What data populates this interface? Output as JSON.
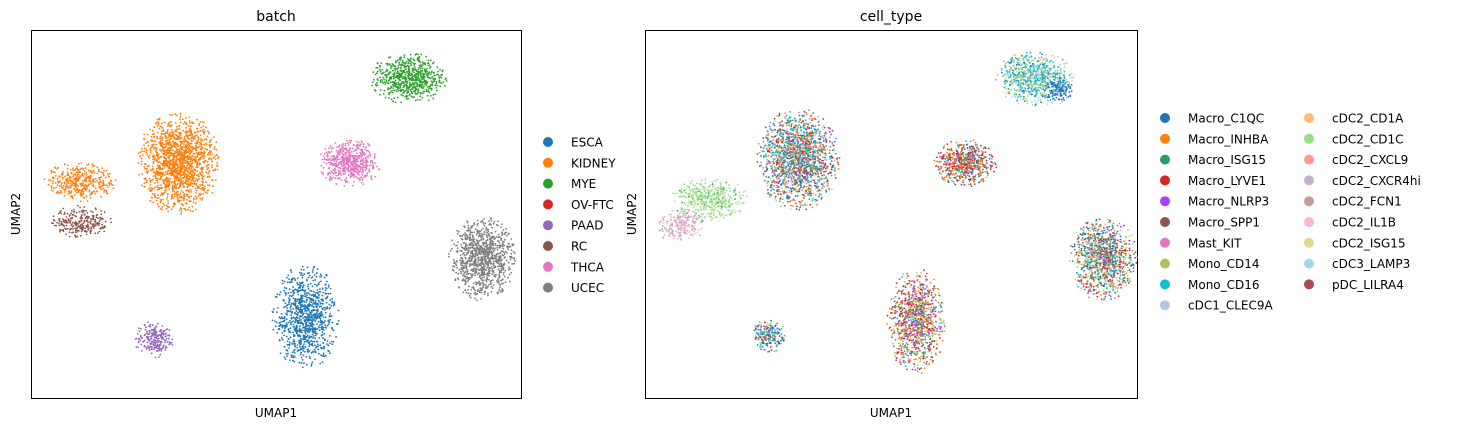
{
  "chart_data": [
    {
      "type": "scatter",
      "title": "batch",
      "xlabel": "UMAP1",
      "ylabel": "UMAP2",
      "xlim": [
        0,
        100
      ],
      "ylim": [
        0,
        100
      ],
      "grid": false,
      "legend_position": "right",
      "series": [
        {
          "name": "ESCA",
          "color": "#1f77b4",
          "clusters": [
            {
              "cx": 56,
              "cy": 22,
              "rx": 7.0,
              "ry": 14.5,
              "n": 950
            }
          ]
        },
        {
          "name": "KIDNEY",
          "color": "#ff7f0e",
          "clusters": [
            {
              "cx": 30,
              "cy": 64,
              "rx": 8.5,
              "ry": 14.0,
              "n": 1500
            },
            {
              "cx": 10,
              "cy": 59,
              "rx": 7.5,
              "ry": 5.5,
              "n": 380
            }
          ]
        },
        {
          "name": "MYE",
          "color": "#2ca02c",
          "clusters": [
            {
              "cx": 77,
              "cy": 87,
              "rx": 8.0,
              "ry": 7.0,
              "n": 650
            }
          ]
        },
        {
          "name": "OV-FTC",
          "color": "#d62728",
          "clusters": []
        },
        {
          "name": "PAAD",
          "color": "#9467bd",
          "clusters": [
            {
              "cx": 25,
              "cy": 16,
              "rx": 4.0,
              "ry": 5.0,
              "n": 220
            }
          ]
        },
        {
          "name": "RC",
          "color": "#8c564b",
          "clusters": [
            {
              "cx": 10,
              "cy": 48,
              "rx": 6.5,
              "ry": 4.5,
              "n": 260
            }
          ]
        },
        {
          "name": "THCA",
          "color": "#e377c2",
          "clusters": [
            {
              "cx": 65,
              "cy": 64,
              "rx": 6.5,
              "ry": 6.5,
              "n": 560
            }
          ]
        },
        {
          "name": "UCEC",
          "color": "#7f7f7f",
          "clusters": [
            {
              "cx": 92,
              "cy": 38,
              "rx": 7.0,
              "ry": 11.5,
              "n": 1000
            }
          ]
        }
      ]
    },
    {
      "type": "scatter",
      "title": "cell_type",
      "xlabel": "UMAP1",
      "ylabel": "UMAP2",
      "xlim": [
        0,
        100
      ],
      "ylim": [
        0,
        100
      ],
      "grid": false,
      "legend_position": "right",
      "legend_columns": 2,
      "series": [
        {
          "name": "Macro_C1QC",
          "color": "#1f77b4"
        },
        {
          "name": "Macro_INHBA",
          "color": "#ff7f0e"
        },
        {
          "name": "Macro_ISG15",
          "color": "#279e68"
        },
        {
          "name": "Macro_LYVE1",
          "color": "#d62728"
        },
        {
          "name": "Macro_NLRP3",
          "color": "#aa40fc"
        },
        {
          "name": "Macro_SPP1",
          "color": "#8c564b"
        },
        {
          "name": "Mast_KIT",
          "color": "#e377c2"
        },
        {
          "name": "Mono_CD14",
          "color": "#b5bd61"
        },
        {
          "name": "Mono_CD16",
          "color": "#17becf"
        },
        {
          "name": "cDC1_CLEC9A",
          "color": "#aec7e8"
        },
        {
          "name": "cDC2_CD1A",
          "color": "#ffbb78"
        },
        {
          "name": "cDC2_CD1C",
          "color": "#98df8a"
        },
        {
          "name": "cDC2_CXCL9",
          "color": "#ff9896"
        },
        {
          "name": "cDC2_CXCR4hi",
          "color": "#c5b0d5"
        },
        {
          "name": "cDC2_FCN1",
          "color": "#c49c94"
        },
        {
          "name": "cDC2_IL1B",
          "color": "#f7b6d2"
        },
        {
          "name": "cDC2_ISG15",
          "color": "#dbdb8d"
        },
        {
          "name": "cDC3_LAMP3",
          "color": "#9edae5"
        },
        {
          "name": "pDC_LILRA4",
          "color": "#ad494a"
        }
      ],
      "clusters": [
        {
          "cx": 79,
          "cy": 87,
          "rx": 8.0,
          "ry": 7.5,
          "n": 800,
          "weights": {
            "Mono_CD16": 5,
            "cDC3_LAMP3": 4,
            "Mono_CD14": 2,
            "cDC2_ISG15": 2,
            "Macro_ISG15": 1,
            "Macro_C1QC": 1
          }
        },
        {
          "cx": 84,
          "cy": 84,
          "rx": 3.0,
          "ry": 3.5,
          "n": 150,
          "weights": {
            "Macro_C1QC": 6,
            "cDC1_CLEC9A": 2
          }
        },
        {
          "cx": 31,
          "cy": 65,
          "rx": 8.5,
          "ry": 14.0,
          "n": 1700,
          "weights": {
            "Mono_CD16": 3,
            "Macro_C1QC": 2,
            "Macro_LYVE1": 2,
            "Macro_INHBA": 2,
            "Macro_NLRP3": 1,
            "Macro_SPP1": 1,
            "Mono_CD14": 1,
            "cDC2_CD1C": 1,
            "Macro_ISG15": 1,
            "cDC3_LAMP3": 1,
            "Mast_KIT": 1
          }
        },
        {
          "cx": 13,
          "cy": 54,
          "rx": 8.0,
          "ry": 6.0,
          "n": 450,
          "weights": {
            "cDC2_CD1C": 8,
            "Macro_ISG15": 1,
            "cDC2_ISG15": 1
          }
        },
        {
          "cx": 7,
          "cy": 47,
          "rx": 5.0,
          "ry": 4.5,
          "n": 220,
          "weights": {
            "cDC2_IL1B": 5,
            "cDC2_FCN1": 3,
            "cDC2_CXCR4hi": 2
          }
        },
        {
          "cx": 65,
          "cy": 64,
          "rx": 6.5,
          "ry": 6.5,
          "n": 600,
          "weights": {
            "Macro_INHBA": 3,
            "Macro_LYVE1": 2,
            "Macro_SPP1": 2,
            "Macro_NLRP3": 1,
            "Mono_CD14": 1,
            "Macro_C1QC": 1,
            "Mono_CD16": 1
          }
        },
        {
          "cx": 93,
          "cy": 38,
          "rx": 7.0,
          "ry": 11.5,
          "n": 1100,
          "weights": {
            "Macro_C1QC": 2,
            "Mono_CD14": 2,
            "Macro_LYVE1": 2,
            "Mono_CD16": 1,
            "cDC2_CD1C": 1,
            "Macro_INHBA": 1,
            "Macro_NLRP3": 1,
            "cDC2_ISG15": 1,
            "Macro_ISG15": 1
          }
        },
        {
          "cx": 55,
          "cy": 21,
          "rx": 6.0,
          "ry": 14.5,
          "n": 1000,
          "weights": {
            "Macro_LYVE1": 3,
            "Macro_INHBA": 2,
            "Macro_NLRP3": 2,
            "Mono_CD14": 2,
            "Macro_ISG15": 1,
            "Mono_CD16": 1,
            "Macro_SPP1": 1,
            "cDC2_CD1C": 1
          }
        },
        {
          "cx": 25,
          "cy": 17,
          "rx": 3.5,
          "ry": 4.5,
          "n": 220,
          "weights": {
            "Macro_C1QC": 3,
            "Mono_CD16": 2,
            "Mono_CD14": 2,
            "cDC2_CD1C": 1,
            "Macro_NLRP3": 1,
            "Macro_LYVE1": 1
          }
        }
      ]
    }
  ]
}
